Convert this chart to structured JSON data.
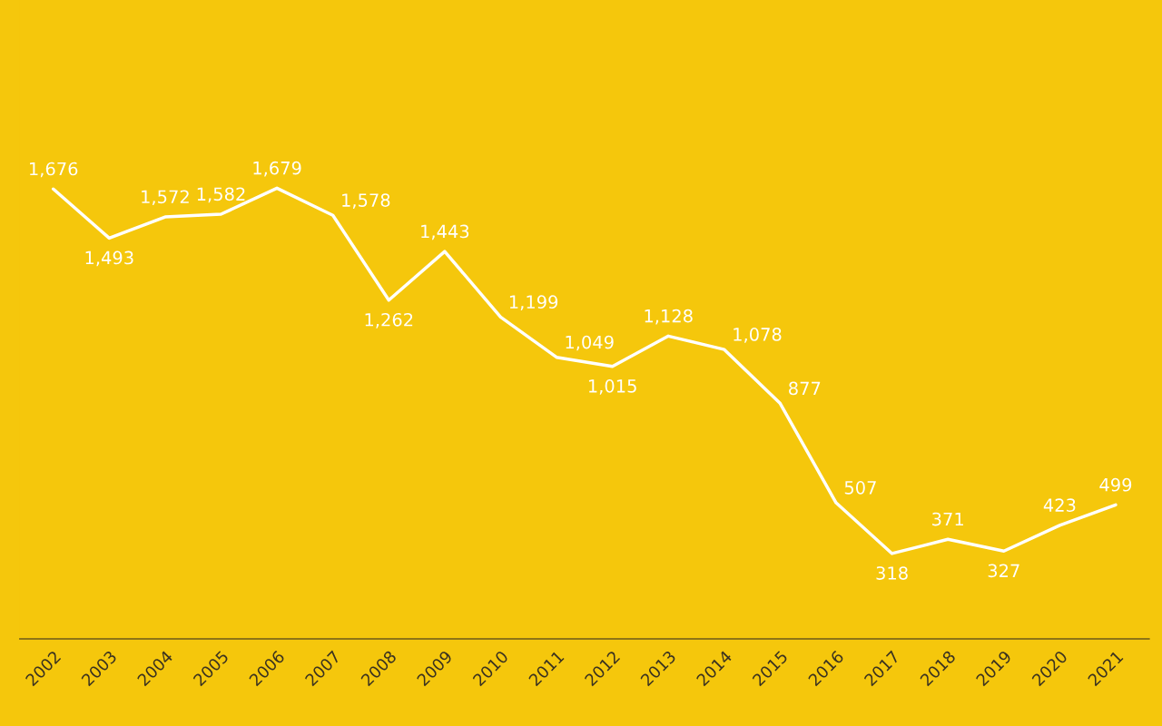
{
  "chart_data": {
    "type": "line",
    "categories": [
      "2002",
      "2003",
      "2004",
      "2005",
      "2006",
      "2007",
      "2008",
      "2009",
      "2010",
      "2011",
      "2012",
      "2013",
      "2014",
      "2015",
      "2016",
      "2017",
      "2018",
      "2019",
      "2020",
      "2021"
    ],
    "series": [
      {
        "color": "#ffffff",
        "values": [
          1676,
          1493,
          1572,
          1582,
          1679,
          1578,
          1262,
          1443,
          1199,
          1049,
          1015,
          1128,
          1078,
          877,
          507,
          318,
          371,
          327,
          423,
          499
        ],
        "value_labels": [
          "1,676",
          "1,493",
          "1,572",
          "1,582",
          "1,679",
          "1,578",
          "1,262",
          "1,443",
          "1,199",
          "1,049",
          "1,015",
          "1,128",
          "1,078",
          "877",
          "507",
          "318",
          "371",
          "327",
          "423",
          "499"
        ]
      }
    ],
    "ylim": [
      0,
      2380
    ],
    "tick_labels": "x",
    "grid": false,
    "marker": "none",
    "line_style": "solid"
  }
}
